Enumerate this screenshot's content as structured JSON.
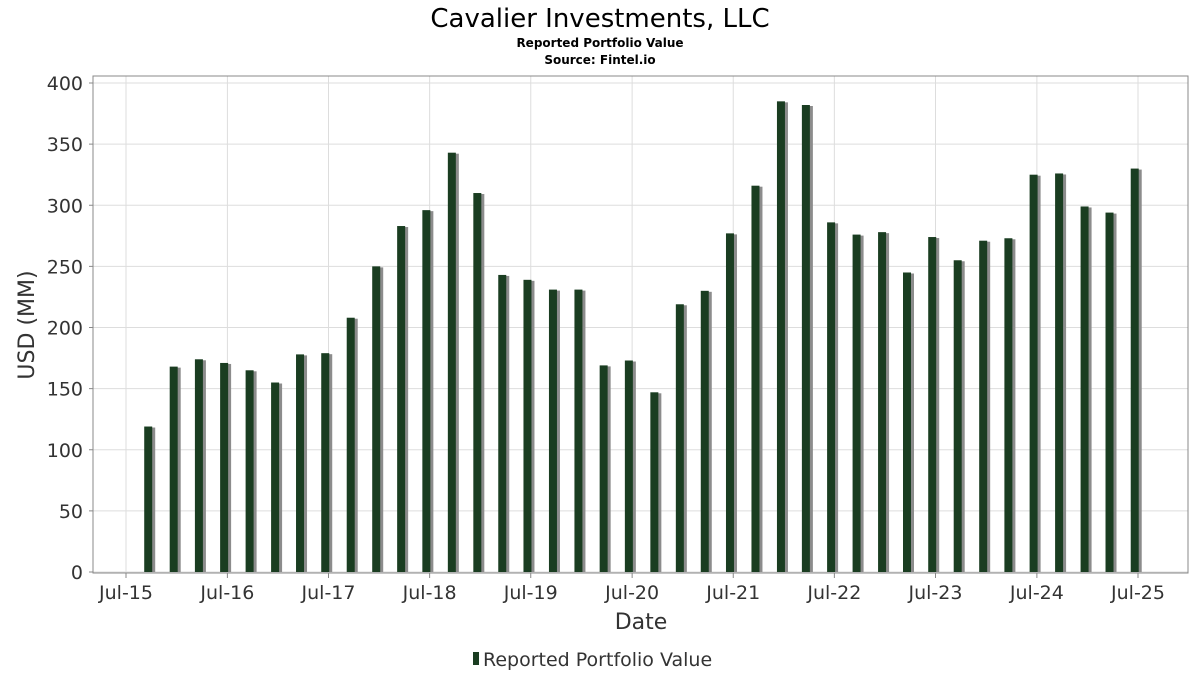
{
  "chart_data": {
    "type": "bar",
    "title": "Cavalier Investments, LLC",
    "subtitle": "Reported Portfolio Value",
    "source": "Source: Fintel.io",
    "xlabel": "Date",
    "ylabel": "USD (MM)",
    "ylim": [
      0,
      400
    ],
    "yticks": [
      "0",
      "50",
      "100",
      "150",
      "200",
      "250",
      "300",
      "350",
      "400"
    ],
    "xticks": [
      "Jul-15",
      "Jul-16",
      "Jul-17",
      "Jul-18",
      "Jul-19",
      "Jul-20",
      "Jul-21",
      "Jul-22",
      "Jul-23",
      "Jul-24",
      "Jul-25"
    ],
    "grid": true,
    "legend": "bottom-center",
    "colors": {
      "bar": "#1a3d21",
      "shadow": "#8c8c8c"
    },
    "series": [
      {
        "name": "Reported Portfolio Value",
        "x": [
          "2015-09-30",
          "2015-12-31",
          "2016-03-31",
          "2016-06-30",
          "2016-09-30",
          "2016-12-31",
          "2017-03-31",
          "2017-06-30",
          "2017-09-30",
          "2017-12-31",
          "2018-03-31",
          "2018-06-30",
          "2018-09-30",
          "2018-12-31",
          "2019-03-31",
          "2019-06-30",
          "2019-09-30",
          "2019-12-31",
          "2020-03-31",
          "2020-06-30",
          "2020-09-30",
          "2020-12-31",
          "2021-03-31",
          "2021-06-30",
          "2021-09-30",
          "2021-12-31",
          "2022-03-31",
          "2022-06-30",
          "2022-09-30",
          "2022-12-31",
          "2023-03-31",
          "2023-06-30",
          "2023-09-30",
          "2023-12-31",
          "2024-03-31",
          "2024-06-30",
          "2024-09-30",
          "2024-12-31",
          "2025-03-31",
          "2025-06-30"
        ],
        "values": [
          119,
          168,
          174,
          171,
          165,
          155,
          178,
          179,
          208,
          250,
          283,
          296,
          343,
          310,
          243,
          239,
          231,
          231,
          169,
          173,
          147,
          219,
          230,
          277,
          316,
          385,
          382,
          286,
          276,
          278,
          245,
          274,
          255,
          271,
          273,
          325,
          326,
          299,
          294,
          330
        ]
      }
    ]
  }
}
